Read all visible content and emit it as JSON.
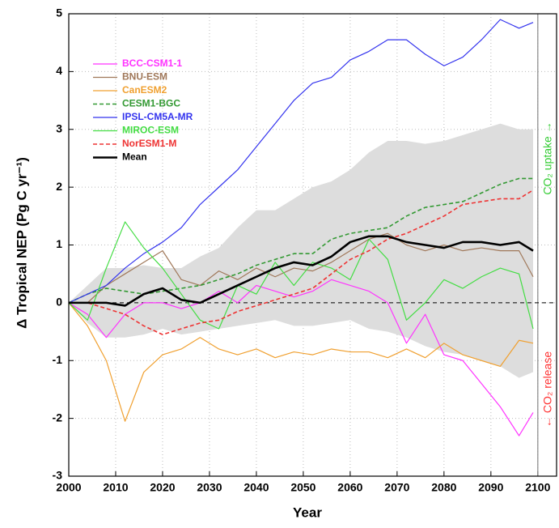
{
  "chart_data": {
    "type": "line",
    "xlabel": "Year",
    "ylabel": "Δ Tropical NEP (Pg C yr⁻¹)",
    "annotations": [
      {
        "text": "CO₂ uptake →",
        "color": "#33cc33"
      },
      {
        "text": "← CO₂ release",
        "color": "#ff3333"
      }
    ],
    "x": [
      2000,
      2004,
      2008,
      2012,
      2016,
      2020,
      2024,
      2028,
      2032,
      2036,
      2040,
      2044,
      2048,
      2052,
      2056,
      2060,
      2064,
      2068,
      2072,
      2076,
      2080,
      2084,
      2088,
      2092,
      2096,
      2099
    ],
    "band": {
      "color": "#dddddd",
      "upper": [
        0,
        0.3,
        0.6,
        0.6,
        0.65,
        0.6,
        0.6,
        0.8,
        0.95,
        1.3,
        1.6,
        1.6,
        1.8,
        2.0,
        2.1,
        2.3,
        2.6,
        2.8,
        2.8,
        2.75,
        2.8,
        2.9,
        3.0,
        3.1,
        3.0,
        3.0
      ],
      "lower": [
        0,
        -0.35,
        -0.6,
        -0.6,
        -0.55,
        -0.45,
        -0.55,
        -0.5,
        -0.45,
        -0.4,
        -0.35,
        -0.3,
        -0.4,
        -0.4,
        -0.35,
        -0.3,
        -0.45,
        -0.5,
        -0.6,
        -0.75,
        -0.85,
        -0.9,
        -1.0,
        -1.1,
        -1.3,
        -1.2
      ]
    },
    "series": [
      {
        "name": "BCC-CSM1-1",
        "color": "#ff33ff",
        "dashed": false,
        "linewidth": 1.2,
        "values": [
          0,
          -0.2,
          -0.6,
          -0.2,
          0.0,
          0.0,
          -0.1,
          0.0,
          0.2,
          0.0,
          0.3,
          0.2,
          0.1,
          0.2,
          0.4,
          0.3,
          0.2,
          0.0,
          -0.7,
          -0.2,
          -0.9,
          -1.0,
          -1.4,
          -1.8,
          -2.3,
          -1.9
        ]
      },
      {
        "name": "BNU-ESM",
        "color": "#a0785a",
        "dashed": false,
        "linewidth": 1.2,
        "values": [
          0,
          0.0,
          0.3,
          0.5,
          0.7,
          0.9,
          0.4,
          0.3,
          0.55,
          0.4,
          0.6,
          0.45,
          0.6,
          0.55,
          0.7,
          0.9,
          1.1,
          1.2,
          1.0,
          0.9,
          1.0,
          0.9,
          0.95,
          0.9,
          0.9,
          0.45
        ]
      },
      {
        "name": "CanESM2",
        "color": "#f0a030",
        "dashed": false,
        "linewidth": 1.2,
        "values": [
          0,
          -0.4,
          -1.0,
          -2.05,
          -1.2,
          -0.9,
          -0.8,
          -0.6,
          -0.8,
          -0.9,
          -0.8,
          -0.95,
          -0.85,
          -0.9,
          -0.8,
          -0.85,
          -0.85,
          -0.95,
          -0.8,
          -0.95,
          -0.7,
          -0.9,
          -1.0,
          -1.1,
          -0.65,
          -0.7
        ]
      },
      {
        "name": "CESM1-BGC",
        "color": "#339933",
        "dashed": true,
        "linewidth": 1.6,
        "values": [
          0,
          0.15,
          0.25,
          0.2,
          0.15,
          0.2,
          0.25,
          0.3,
          0.4,
          0.5,
          0.65,
          0.75,
          0.85,
          0.85,
          1.1,
          1.2,
          1.25,
          1.3,
          1.5,
          1.65,
          1.7,
          1.75,
          1.9,
          2.05,
          2.15,
          2.15
        ]
      },
      {
        "name": "IPSL-CM5A-MR",
        "color": "#3333ee",
        "dashed": false,
        "linewidth": 1.2,
        "values": [
          0,
          0.15,
          0.3,
          0.6,
          0.85,
          1.05,
          1.3,
          1.7,
          2.0,
          2.3,
          2.7,
          3.1,
          3.5,
          3.8,
          3.9,
          4.2,
          4.35,
          4.55,
          4.55,
          4.3,
          4.1,
          4.25,
          4.55,
          4.9,
          4.75,
          4.85
        ]
      },
      {
        "name": "MIROC-ESM",
        "color": "#44dd44",
        "dashed": false,
        "linewidth": 1.2,
        "values": [
          0,
          -0.3,
          0.6,
          1.4,
          0.95,
          0.6,
          0.15,
          -0.3,
          -0.45,
          0.3,
          0.15,
          0.7,
          0.3,
          0.7,
          0.6,
          0.4,
          1.1,
          0.75,
          -0.3,
          0.0,
          0.4,
          0.25,
          0.45,
          0.6,
          0.5,
          -0.45
        ]
      },
      {
        "name": "NorESM1-M",
        "color": "#ee3333",
        "dashed": true,
        "linewidth": 1.6,
        "values": [
          0,
          0,
          -0.1,
          -0.2,
          -0.4,
          -0.55,
          -0.45,
          -0.35,
          -0.3,
          -0.15,
          -0.05,
          0.05,
          0.15,
          0.25,
          0.5,
          0.75,
          0.9,
          1.1,
          1.2,
          1.35,
          1.5,
          1.7,
          1.75,
          1.8,
          1.8,
          1.95
        ]
      },
      {
        "name": "Mean",
        "color": "#000000",
        "dashed": false,
        "linewidth": 2.6,
        "values": [
          0,
          0,
          0,
          -0.05,
          0.15,
          0.25,
          0.05,
          0.0,
          0.15,
          0.3,
          0.45,
          0.6,
          0.7,
          0.65,
          0.8,
          1.05,
          1.15,
          1.15,
          1.05,
          1.0,
          0.95,
          1.05,
          1.05,
          1.0,
          1.05,
          0.9
        ]
      }
    ],
    "xlim": [
      2000,
      2104
    ],
    "xticks": [
      2000,
      2010,
      2020,
      2030,
      2040,
      2050,
      2060,
      2070,
      2080,
      2090,
      2100
    ],
    "ylim": [
      -3,
      5
    ],
    "yticks": [
      -3,
      -2,
      -1,
      0,
      1,
      2,
      3,
      4,
      5
    ],
    "grid": true,
    "legend": "upper left"
  }
}
